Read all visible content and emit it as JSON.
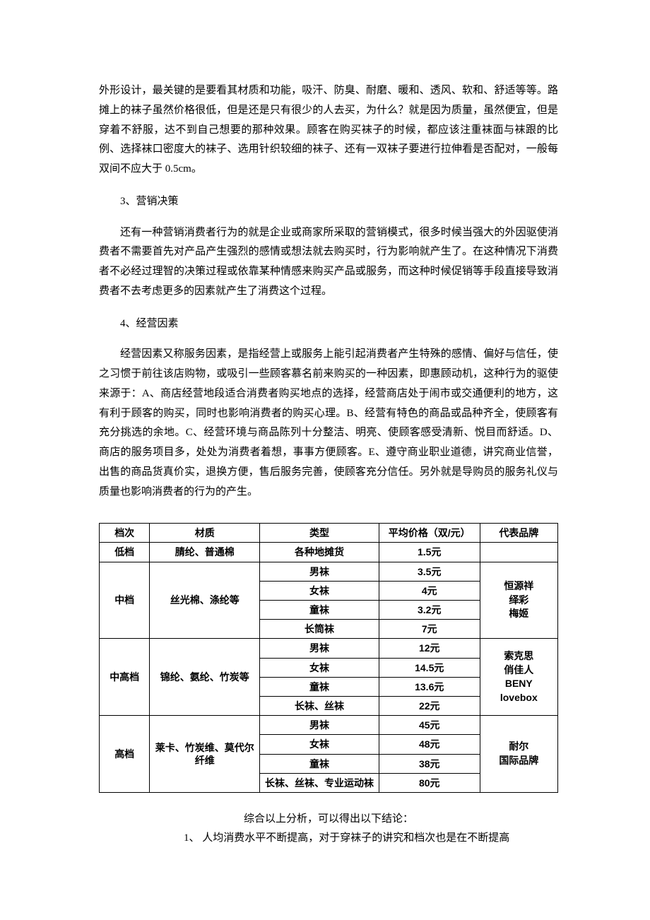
{
  "paragraphs": {
    "p1": "外形设计，最关键的是要看其材质和功能，吸汗、防臭、耐磨、暖和、透风、软和、舒适等等。路摊上的袜子虽然价格很低，但是还是只有很少的人去买，为什么？就是因为质量，虽然便宜，但是穿着不舒服，达不到自己想要的那种效果。顾客在购买袜子的时候，都应该注重袜面与袜跟的比例、选择袜口密度大的袜子、选用针织较细的袜子、还有一双袜子要进行拉伸看是否配对，一般每双间不应大于 0.5cm。",
    "h3": "3、营销决策",
    "p3": "还有一种营销消费者行为的就是企业或商家所采取的营销模式，很多时候当强大的外因驱使消费者不需要首先对产品产生强烈的感情或想法就去购买时，行为影响就产生了。在这种情况下消费者不必经过理智的决策过程或依靠某种情感来购买产品或服务，而这种时候促销等手段直接导致消费者不去考虑更多的因素就产生了消费这个过程。",
    "h4": "4、经营因素",
    "p4": "经营因素又称服务因素，是指经营上或服务上能引起消费者产生特殊的感情、偏好与信任，使之习惯于前往该店购物，或吸引一些顾客慕名前来购买的一种因素，即惠顾动机，这种行为的驱使来源于：A、商店经营地段适合消费者购买地点的选择，经营商店处于闹市或交通便利的地方，这有利于顾客的购买，同时也影响消费者的购买心理。B、经营有特色的商品或品种齐全，使顾客有充分挑选的余地。C、经营环境与商品陈列十分整洁、明亮、使顾客感受清新、悦目而舒适。D、商店的服务项目多，处处为消费者着想，事事方便顾客。E、遵守商业职业道德，讲究商业信誉，出售的商品货真价实，退换方便，售后服务完善，使顾客充分信任。另外就是导购员的服务礼仪与质量也影响消费者的行为的产生。"
  },
  "table": {
    "headers": {
      "tier": "档次",
      "material": "材质",
      "type": "类型",
      "price": "平均价格（双/元）",
      "brand": "代表品牌"
    },
    "rows": {
      "low": {
        "tier": "低档",
        "material": "腈纶、普通棉",
        "type": "各种地摊货",
        "price": "1.5元",
        "brand": ""
      },
      "mid": {
        "tier": "中档",
        "material": "丝光棉、涤纶等",
        "brand": "恒源祥\n绎彩\n梅姬",
        "sub": [
          {
            "type": "男袜",
            "price": "3.5元"
          },
          {
            "type": "女袜",
            "price": "4元"
          },
          {
            "type": "童袜",
            "price": "3.2元"
          },
          {
            "type": "长筒袜",
            "price": "7元"
          }
        ]
      },
      "midhigh": {
        "tier": "中高档",
        "material": "锦纶、氨纶、竹炭等",
        "brand": "索克思\n俏佳人\nBENY\nlovebox",
        "sub": [
          {
            "type": "男袜",
            "price": "12元"
          },
          {
            "type": "女袜",
            "price": "14.5元"
          },
          {
            "type": "童袜",
            "price": "13.6元"
          },
          {
            "type": "长袜、丝袜",
            "price": "22元"
          }
        ]
      },
      "high": {
        "tier": "高档",
        "material": "莱卡、竹炭维、莫代尔纤维",
        "brand": "耐尔\n国际品牌",
        "sub": [
          {
            "type": "男袜",
            "price": "45元"
          },
          {
            "type": "女袜",
            "price": "48元"
          },
          {
            "type": "童袜",
            "price": "38元"
          },
          {
            "type": "长袜、丝袜、专业运动袜",
            "price": "80元"
          }
        ]
      }
    }
  },
  "conclusion": {
    "lead": "综合以上分析，可以得出以下结论：",
    "item1": "1、 人均消费水平不断提高，对于穿袜子的讲究和档次也是在不断提高"
  }
}
